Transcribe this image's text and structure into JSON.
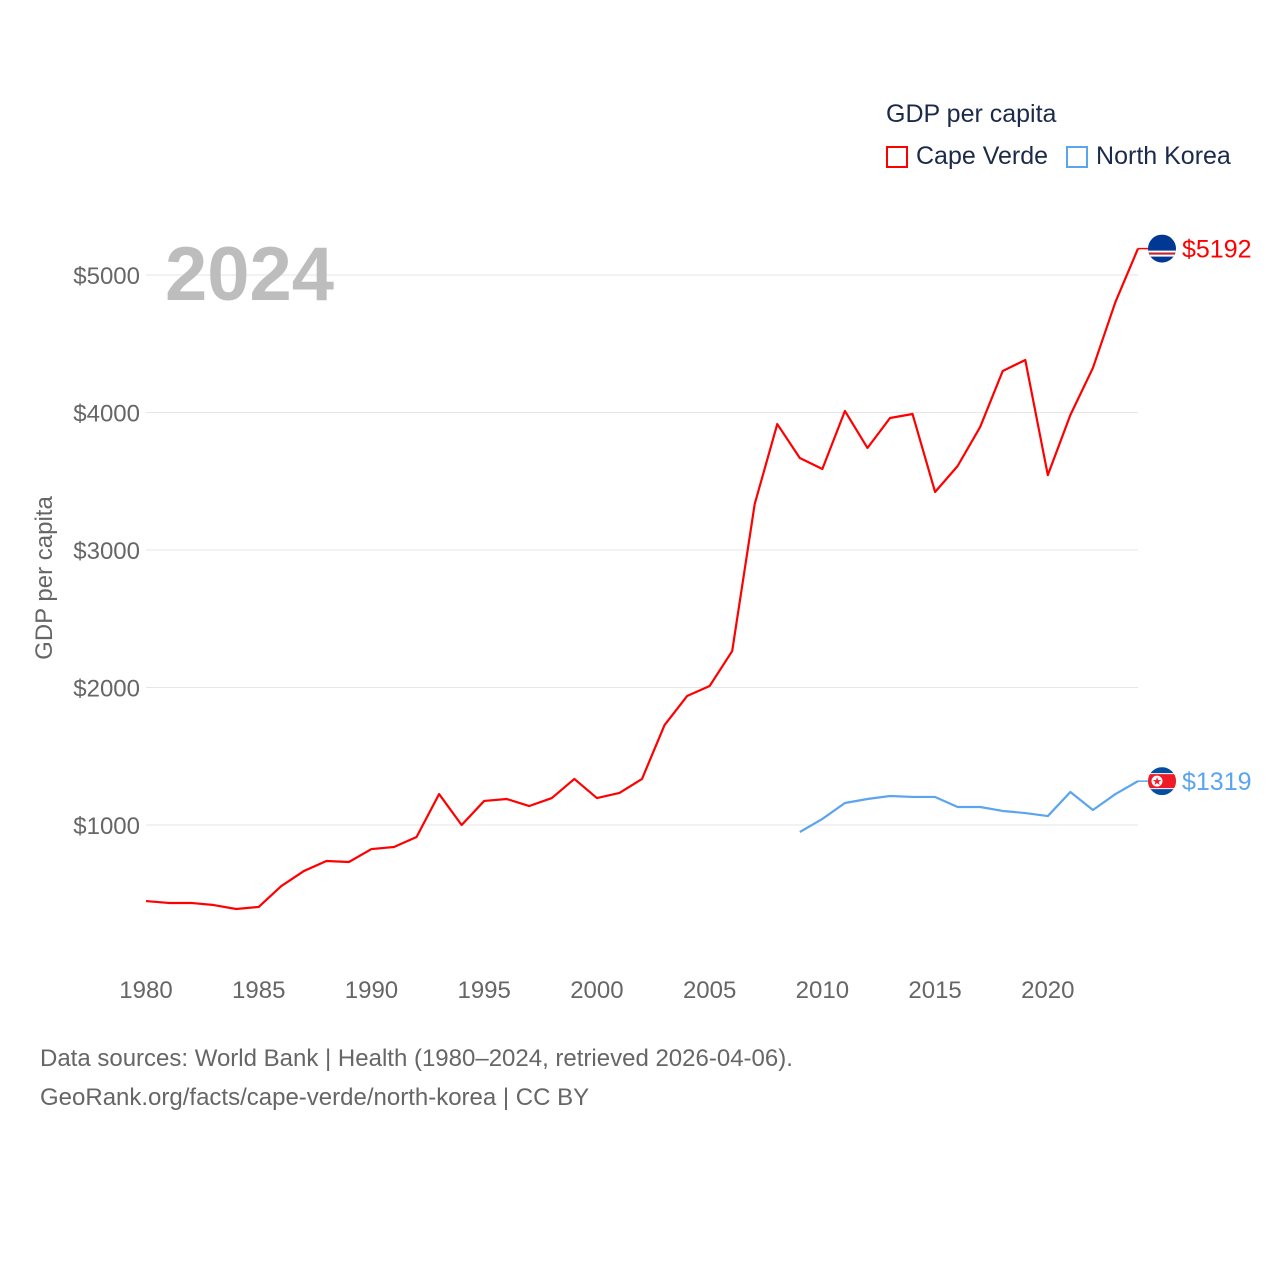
{
  "legend": {
    "title": "GDP per capita",
    "items": [
      {
        "label": "Cape Verde",
        "color": "#ff0000"
      },
      {
        "label": "North Korea",
        "color": "#5ba4ee"
      }
    ]
  },
  "footer": {
    "line1": "Data sources: World Bank | Health (1980–2024, retrieved 2026-04-06).",
    "line2": "GeoRank.org/facts/cape-verde/north-korea | CC BY"
  },
  "chart_data": {
    "type": "line",
    "year_label": "2024",
    "ylabel": "GDP per capita",
    "xlabel": "",
    "xlim": [
      1980,
      2024
    ],
    "ylim": [
      0,
      5300
    ],
    "x_ticks": [
      "1980",
      "1985",
      "1990",
      "1995",
      "2000",
      "2005",
      "2010",
      "2015",
      "2020"
    ],
    "y_ticks": [
      {
        "v": 1000,
        "label": "$1000"
      },
      {
        "v": 2000,
        "label": "$2000"
      },
      {
        "v": 3000,
        "label": "$3000"
      },
      {
        "v": 4000,
        "label": "$4000"
      },
      {
        "v": 5000,
        "label": "$5000"
      }
    ],
    "grid": true,
    "series": [
      {
        "name": "Cape Verde",
        "color": "#ff0000",
        "end_label": "$5192",
        "flag": "cape-verde",
        "x": [
          1980,
          1981,
          1982,
          1983,
          1984,
          1985,
          1986,
          1987,
          1988,
          1989,
          1990,
          1991,
          1992,
          1993,
          1994,
          1995,
          1996,
          1997,
          1998,
          1999,
          2000,
          2001,
          2002,
          2003,
          2004,
          2005,
          2006,
          2007,
          2008,
          2009,
          2010,
          2011,
          2012,
          2013,
          2014,
          2015,
          2016,
          2017,
          2018,
          2019,
          2020,
          2021,
          2022,
          2023,
          2024
        ],
        "values": [
          447,
          433,
          433,
          418,
          389,
          404,
          556,
          665,
          738,
          731,
          825,
          840,
          913,
          1225,
          1000,
          1175,
          1189,
          1138,
          1196,
          1335,
          1196,
          1233,
          1335,
          1727,
          1938,
          2011,
          2265,
          3335,
          3916,
          3669,
          3589,
          4011,
          3742,
          3960,
          3989,
          3422,
          3611,
          3895,
          4302,
          4382,
          3545,
          3982,
          4324,
          4804,
          5192
        ]
      },
      {
        "name": "North Korea",
        "color": "#5ba4ee",
        "end_label": "$1319",
        "flag": "north-korea",
        "x": [
          2009,
          2010,
          2011,
          2012,
          2013,
          2014,
          2015,
          2016,
          2017,
          2018,
          2019,
          2020,
          2021,
          2022,
          2023,
          2024
        ],
        "values": [
          949,
          1044,
          1160,
          1189,
          1211,
          1204,
          1204,
          1131,
          1131,
          1102,
          1087,
          1065,
          1240,
          1109,
          1225,
          1319
        ]
      }
    ]
  }
}
